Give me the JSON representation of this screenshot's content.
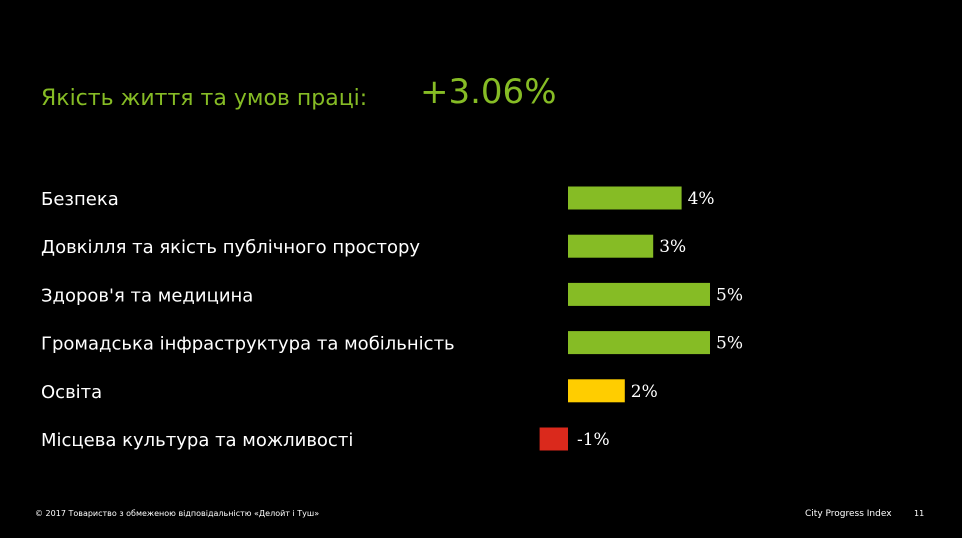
{
  "header": {
    "title": "Якість життя та умов праці:",
    "total": "+3.06%"
  },
  "colors": {
    "positive_high": "#86BC25",
    "positive_low": "#FFCD00",
    "negative": "#DA291C",
    "title": "#86BC25",
    "background": "#000000"
  },
  "chart_data": {
    "type": "bar",
    "orientation": "horizontal",
    "categories": [
      "Безпека",
      "Довкілля та якість публічного простору",
      "Здоров'я та медицина",
      "Громадська інфраструктура та мобільність",
      "Освіта",
      "Місцева культура та можливості"
    ],
    "values": [
      4,
      3,
      5,
      5,
      2,
      -1
    ],
    "value_labels": [
      "4%",
      "3%",
      "5%",
      "5%",
      "2%",
      "-1%"
    ],
    "bar_colors": [
      "#86BC25",
      "#86BC25",
      "#86BC25",
      "#86BC25",
      "#FFCD00",
      "#DA291C"
    ],
    "xlim": [
      -1,
      5
    ],
    "grid": false,
    "title": "",
    "xlabel": "",
    "ylabel": ""
  },
  "footer": {
    "copyright": "© 2017 Товариство з обмеженою відповідальністю «Делойт і Туш»",
    "brand": "City Progress Index",
    "page_number": "11"
  }
}
